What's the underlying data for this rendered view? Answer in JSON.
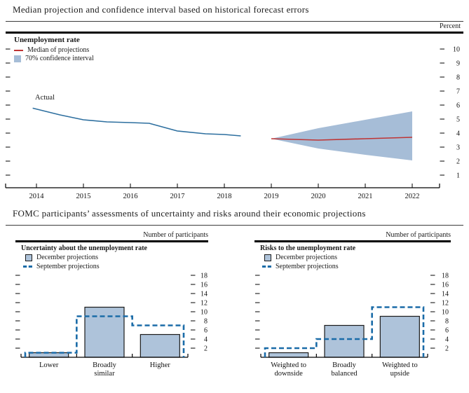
{
  "titles": {
    "top": "Median projection and confidence interval based on historical forecast errors",
    "bottom": "FOMC participants’ assessments of uncertainty and risks around their economic projections"
  },
  "chart_data": [
    {
      "name": "unemployment-rate-fan-chart",
      "type": "area",
      "title": "Unemployment rate",
      "unit": "Percent",
      "ylim": [
        0,
        11
      ],
      "yticks": [
        1,
        2,
        3,
        4,
        5,
        6,
        7,
        8,
        9,
        10
      ],
      "xticks": [
        2014,
        2015,
        2016,
        2017,
        2018,
        2019,
        2020,
        2021,
        2022
      ],
      "legend": [
        "Median of projections",
        "70% confidence interval"
      ],
      "actual": {
        "label": "Actual",
        "x": [
          2013.92,
          2014.5,
          2015,
          2015.5,
          2016,
          2016.4,
          2017,
          2017.6,
          2018,
          2018.35
        ],
        "y": [
          5.78,
          5.3,
          4.95,
          4.8,
          4.75,
          4.7,
          4.15,
          3.95,
          3.9,
          3.8
        ]
      },
      "projection": {
        "years": [
          2019,
          2020,
          2021,
          2022
        ],
        "median": [
          3.6,
          3.5,
          3.6,
          3.7
        ],
        "ci70_upper": [
          3.6,
          4.35,
          4.95,
          5.55
        ],
        "ci70_lower": [
          3.6,
          2.9,
          2.45,
          2.05
        ]
      }
    },
    {
      "name": "uncertainty-about-unemployment-rate",
      "type": "bar",
      "title": "Uncertainty about the unemployment rate",
      "axis_caption": "Number of participants",
      "categories": [
        [
          "Lower"
        ],
        [
          "Broadly",
          "similar"
        ],
        [
          "Higher"
        ]
      ],
      "yticks": [
        2,
        4,
        6,
        8,
        10,
        12,
        14,
        16,
        18
      ],
      "ylim": [
        0,
        19
      ],
      "series": [
        {
          "name": "December projections",
          "style": "bar",
          "values": [
            1,
            11,
            5
          ]
        },
        {
          "name": "September projections",
          "style": "dashed-step",
          "values": [
            1,
            9,
            7
          ]
        }
      ]
    },
    {
      "name": "risks-to-unemployment-rate",
      "type": "bar",
      "title": "Risks to the unemployment rate",
      "axis_caption": "Number of participants",
      "categories": [
        [
          "Weighted to",
          "downside"
        ],
        [
          "Broadly",
          "balanced"
        ],
        [
          "Weighted to",
          "upside"
        ]
      ],
      "yticks": [
        2,
        4,
        6,
        8,
        10,
        12,
        14,
        16,
        18
      ],
      "ylim": [
        0,
        19
      ],
      "series": [
        {
          "name": "December projections",
          "style": "bar",
          "values": [
            1,
            7,
            9
          ]
        },
        {
          "name": "September projections",
          "style": "dashed-step",
          "values": [
            2,
            4,
            11
          ]
        }
      ]
    }
  ],
  "colors": {
    "actual_line": "#2d6f9f",
    "median_line": "#bf3434",
    "confidence_band": "#a6bdd7",
    "bar_fill": "#aec3da",
    "bar_border": "#1a1a1a",
    "september_dashed": "#1b6ca8",
    "axis": "#000000"
  }
}
